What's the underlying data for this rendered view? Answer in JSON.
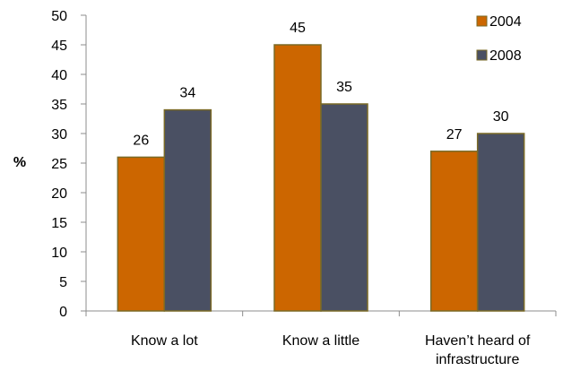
{
  "chart_data": {
    "type": "bar",
    "title": "",
    "xlabel": "",
    "ylabel": "%",
    "categories": [
      "Know a lot",
      "Know a little",
      "Haven’t heard of infrastructure"
    ],
    "category_lines": [
      [
        "Know a lot"
      ],
      [
        "Know a little"
      ],
      [
        "Haven’t heard of",
        "infrastructure"
      ]
    ],
    "series": [
      {
        "name": "2004",
        "values": [
          26,
          45,
          27
        ],
        "color": "#CC6600",
        "edge": "#7A6A26"
      },
      {
        "name": "2008",
        "values": [
          34,
          35,
          30
        ],
        "color": "#4A5063",
        "edge": "#7A6A26"
      }
    ],
    "ylim": [
      0,
      50
    ],
    "yticks": [
      0,
      5,
      10,
      15,
      20,
      25,
      30,
      35,
      40,
      45,
      50
    ],
    "grid": false,
    "legend": "top-right",
    "axis_color": "#8C8C8C"
  }
}
